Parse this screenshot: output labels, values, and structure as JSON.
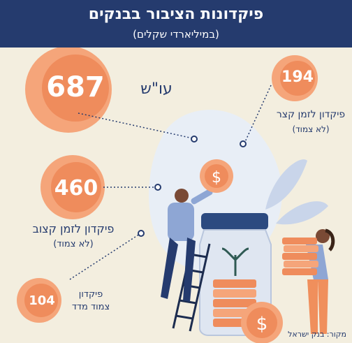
{
  "header": {
    "title": "פיקדונות הציבור בבנקים",
    "subtitle": "(במיליארדי שקלים)"
  },
  "items": {
    "current": {
      "value": "687",
      "label": "עו\"ש"
    },
    "short_term": {
      "value": "194",
      "label": "פיקדון לזמן קצר",
      "note": "(לא צמוד)"
    },
    "fixed_term": {
      "value": "460",
      "label": "פיקדון לזמן קצוב",
      "note": "(לא צמוד)"
    },
    "index_linked": {
      "value": "104",
      "label_line1": "פיקדון",
      "label_line2": "צמוד מדד"
    }
  },
  "footer": {
    "source": "מקור: בנק ישראל"
  },
  "colors": {
    "header_bg": "#253b6e",
    "background": "#f3eedf",
    "coin_outer": "#f5a57a",
    "coin_inner": "#ef8c5c",
    "text_dark": "#253b6e"
  }
}
